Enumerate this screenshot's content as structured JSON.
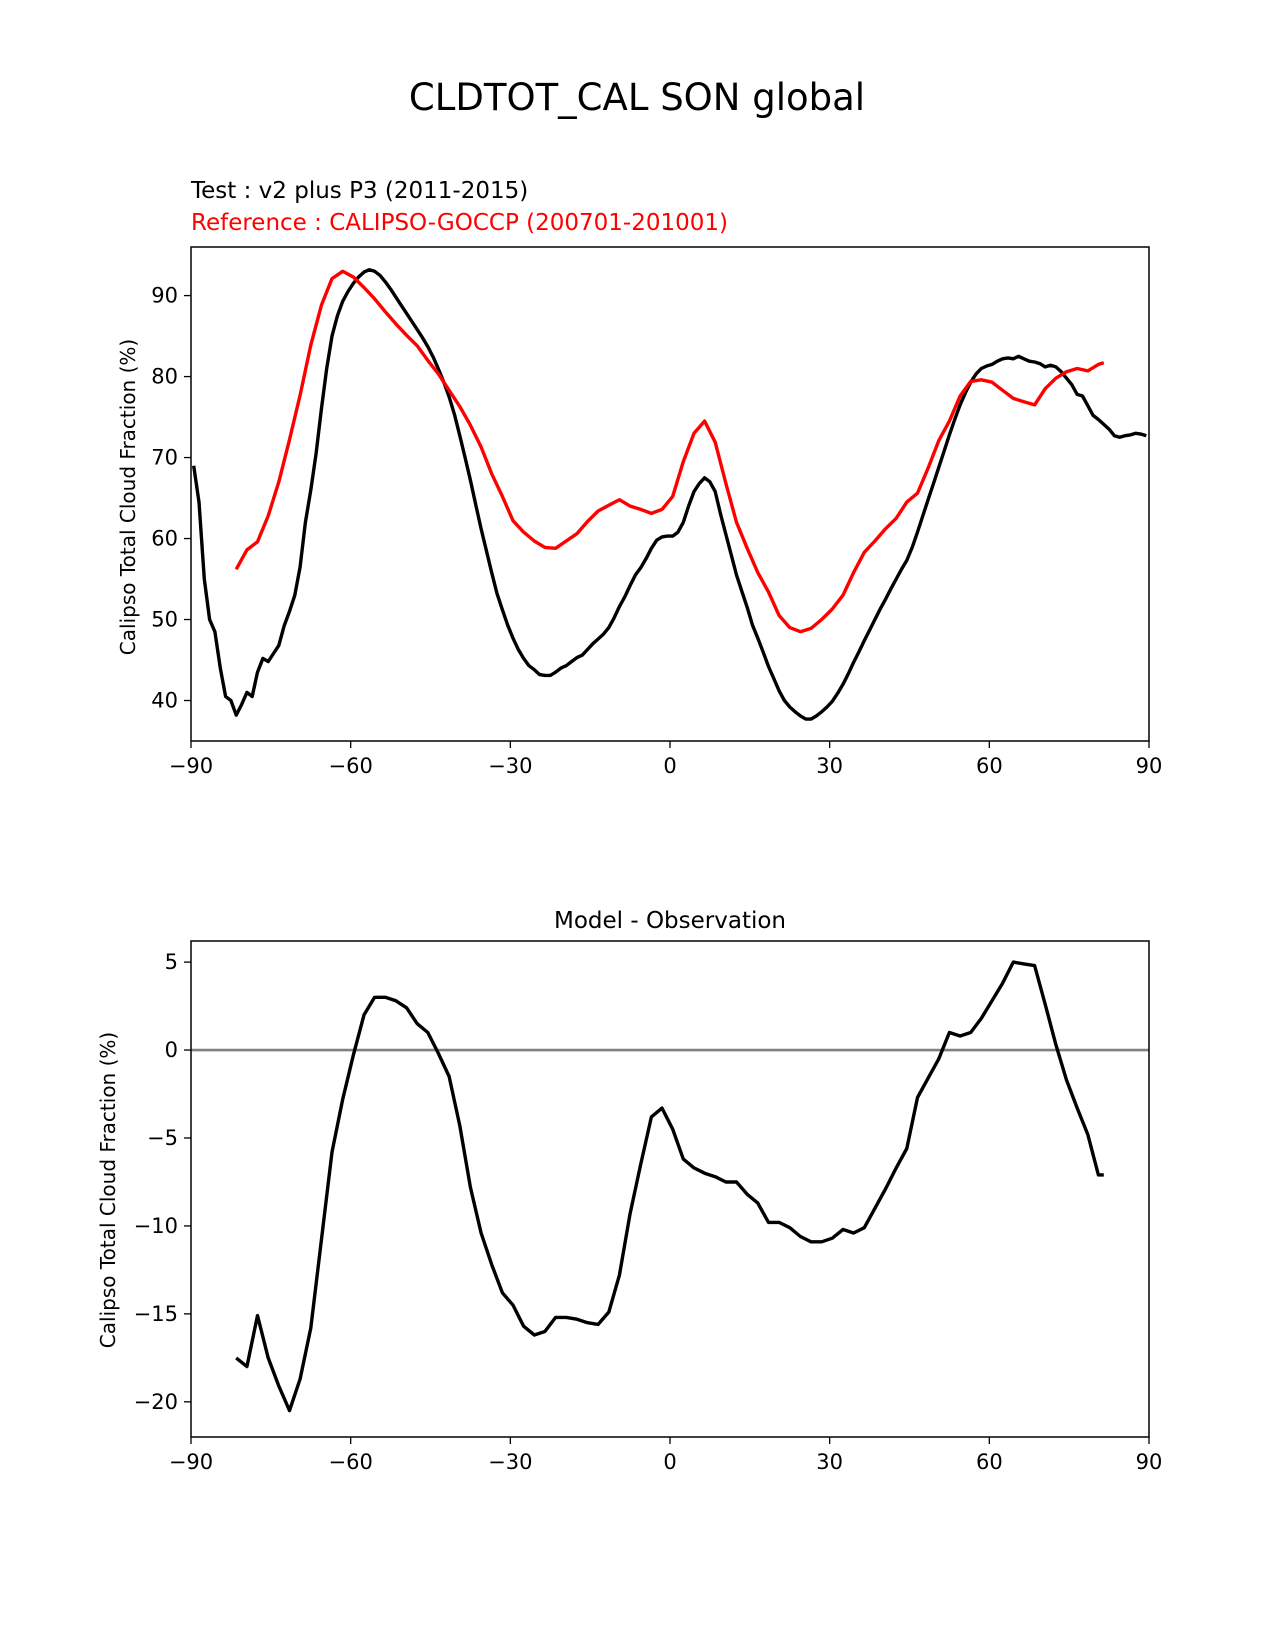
{
  "figure": {
    "suptitle": "CLDTOT_CAL SON global",
    "test_label": "Test : v2 plus P3 (2011-2015)",
    "reference_label": "Reference : CALIPSO-GOCCP (200701-201001)",
    "diff_title": "Model - Observation"
  },
  "colors": {
    "test": "#000000",
    "reference": "#ff0000",
    "zero_line": "#808080"
  },
  "chart_data": [
    {
      "type": "line",
      "title": "",
      "xlabel": "",
      "ylabel": "Calipso Total Cloud Fraction (%)",
      "xlim": [
        -90,
        90
      ],
      "ylim": [
        35,
        96
      ],
      "xticks": [
        -90,
        -60,
        -30,
        0,
        30,
        60,
        90
      ],
      "xtick_labels": [
        "−90",
        "−60",
        "−30",
        "0",
        "30",
        "60",
        "90"
      ],
      "yticks": [
        40,
        50,
        60,
        70,
        80,
        90
      ],
      "ytick_labels": [
        "40",
        "50",
        "60",
        "70",
        "80",
        "90"
      ],
      "series": [
        {
          "name": "Test : v2 plus P3 (2011-2015)",
          "color": "#000000",
          "x": [
            -89.5,
            -88.5,
            -87.5,
            -86.5,
            -85.5,
            -84.5,
            -83.5,
            -82.5,
            -81.5,
            -80.5,
            -79.5,
            -78.5,
            -77.5,
            -76.5,
            -75.5,
            -74.5,
            -73.5,
            -72.5,
            -71.5,
            -70.5,
            -69.5,
            -68.5,
            -67.5,
            -66.5,
            -65.5,
            -64.5,
            -63.5,
            -62.5,
            -61.5,
            -60.5,
            -59.5,
            -58.5,
            -57.5,
            -56.5,
            -55.5,
            -54.5,
            -53.5,
            -52.5,
            -51.5,
            -50.5,
            -49.5,
            -48.5,
            -47.5,
            -46.5,
            -45.5,
            -44.5,
            -43.5,
            -42.5,
            -41.5,
            -40.5,
            -39.5,
            -38.5,
            -37.5,
            -36.5,
            -35.5,
            -34.5,
            -33.5,
            -32.5,
            -31.5,
            -30.5,
            -29.5,
            -28.5,
            -27.5,
            -26.5,
            -25.5,
            -24.5,
            -23.5,
            -22.5,
            -21.5,
            -20.5,
            -19.5,
            -18.5,
            -17.5,
            -16.5,
            -15.5,
            -14.5,
            -13.5,
            -12.5,
            -11.5,
            -10.5,
            -9.5,
            -8.5,
            -7.5,
            -6.5,
            -5.5,
            -4.5,
            -3.5,
            -2.5,
            -1.5,
            -0.5,
            0.5,
            1.5,
            2.5,
            3.5,
            4.5,
            5.5,
            6.5,
            7.5,
            8.5,
            9.5,
            10.5,
            11.5,
            12.5,
            13.5,
            14.5,
            15.5,
            16.5,
            17.5,
            18.5,
            19.5,
            20.5,
            21.5,
            22.5,
            23.5,
            24.5,
            25.5,
            26.5,
            27.5,
            28.5,
            29.5,
            30.5,
            31.5,
            32.5,
            33.5,
            34.5,
            35.5,
            36.5,
            37.5,
            38.5,
            39.5,
            40.5,
            41.5,
            42.5,
            43.5,
            44.5,
            45.5,
            46.5,
            47.5,
            48.5,
            49.5,
            50.5,
            51.5,
            52.5,
            53.5,
            54.5,
            55.5,
            56.5,
            57.5,
            58.5,
            59.5,
            60.5,
            61.5,
            62.5,
            63.5,
            64.5,
            65.5,
            66.5,
            67.5,
            68.5,
            69.5,
            70.5,
            71.5,
            72.5,
            73.5,
            74.5,
            75.5,
            76.5,
            77.5,
            78.5,
            79.5,
            80.5,
            81.5,
            82.5,
            83.5,
            84.5,
            85.5,
            86.5,
            87.5,
            88.5,
            89.5
          ],
          "y": [
            69.0,
            64.5,
            55.0,
            50.0,
            48.5,
            44.0,
            40.5,
            40.0,
            38.2,
            39.5,
            41.0,
            40.5,
            43.5,
            45.2,
            44.8,
            45.8,
            46.8,
            49.2,
            51.0,
            53.0,
            56.5,
            62.0,
            66.0,
            70.5,
            76.0,
            81.0,
            85.0,
            87.5,
            89.3,
            90.5,
            91.5,
            92.3,
            92.9,
            93.2,
            93.0,
            92.5,
            91.7,
            90.8,
            89.8,
            88.8,
            87.8,
            86.8,
            85.8,
            84.8,
            83.7,
            82.4,
            80.9,
            79.3,
            77.5,
            75.3,
            72.7,
            70.0,
            67.2,
            64.2,
            61.2,
            58.5,
            55.8,
            53.2,
            51.2,
            49.3,
            47.7,
            46.3,
            45.2,
            44.3,
            43.8,
            43.2,
            43.1,
            43.1,
            43.5,
            44.0,
            44.3,
            44.8,
            45.3,
            45.6,
            46.3,
            47.0,
            47.6,
            48.2,
            49.0,
            50.2,
            51.6,
            52.8,
            54.2,
            55.5,
            56.4,
            57.5,
            58.8,
            59.8,
            60.2,
            60.3,
            60.3,
            60.8,
            62.0,
            64.0,
            65.8,
            66.8,
            67.5,
            67.0,
            65.8,
            63.0,
            60.5,
            58.0,
            55.5,
            53.5,
            51.5,
            49.3,
            47.7,
            46.0,
            44.2,
            42.7,
            41.2,
            40.0,
            39.2,
            38.6,
            38.1,
            37.7,
            37.7,
            38.1,
            38.6,
            39.2,
            39.9,
            40.9,
            42.0,
            43.3,
            44.7,
            46.0,
            47.4,
            48.7,
            50.0,
            51.3,
            52.5,
            53.8,
            55.0,
            56.2,
            57.3,
            58.9,
            60.8,
            62.8,
            64.8,
            66.8,
            68.8,
            70.8,
            72.8,
            74.7,
            76.5,
            78.0,
            79.3,
            80.3,
            81.0,
            81.3,
            81.5,
            81.9,
            82.2,
            82.3,
            82.2,
            82.5,
            82.2,
            81.9,
            81.8,
            81.6,
            81.2,
            81.4,
            81.2,
            80.6,
            79.8,
            79.0,
            77.8,
            77.6,
            76.4,
            75.2,
            74.7,
            74.1,
            73.5,
            72.7,
            72.5,
            72.7,
            72.8,
            73.0,
            72.9,
            72.7
          ]
        },
        {
          "name": "Reference : CALIPSO-GOCCP (200701-201001)",
          "color": "#ff0000",
          "x": [
            -81.5,
            -79.5,
            -77.5,
            -75.5,
            -73.5,
            -71.5,
            -69.5,
            -67.5,
            -65.5,
            -63.5,
            -61.5,
            -59.5,
            -57.5,
            -55.5,
            -53.5,
            -51.5,
            -49.5,
            -47.5,
            -45.5,
            -43.5,
            -41.5,
            -39.5,
            -37.5,
            -35.5,
            -33.5,
            -31.5,
            -29.5,
            -27.5,
            -25.5,
            -23.5,
            -21.5,
            -19.5,
            -17.5,
            -15.5,
            -13.5,
            -11.5,
            -9.5,
            -7.5,
            -5.5,
            -3.5,
            -1.5,
            0.5,
            2.5,
            4.5,
            6.5,
            8.5,
            10.5,
            12.5,
            14.5,
            16.5,
            18.5,
            20.5,
            22.5,
            24.5,
            26.5,
            28.5,
            30.5,
            32.5,
            34.5,
            36.5,
            38.5,
            40.5,
            42.5,
            44.5,
            46.5,
            48.5,
            50.5,
            52.5,
            54.5,
            56.5,
            58.5,
            60.5,
            62.5,
            64.5,
            66.5,
            68.5,
            70.5,
            72.5,
            74.5,
            76.5,
            78.5,
            80.5,
            81.5
          ],
          "y": [
            56.2,
            58.6,
            59.6,
            62.8,
            67.0,
            72.2,
            77.7,
            83.9,
            88.8,
            92.1,
            93.0,
            92.3,
            91.0,
            89.6,
            88.0,
            86.5,
            85.1,
            83.8,
            82.0,
            80.3,
            78.3,
            76.3,
            74.0,
            71.3,
            68.0,
            65.2,
            62.2,
            60.8,
            59.7,
            58.9,
            58.8,
            59.7,
            60.6,
            62.1,
            63.4,
            64.1,
            64.8,
            64.0,
            63.6,
            63.1,
            63.6,
            65.2,
            69.5,
            73.0,
            74.5,
            71.9,
            66.8,
            62.0,
            58.8,
            55.8,
            53.4,
            50.5,
            49.0,
            48.5,
            48.9,
            50.0,
            51.3,
            53.0,
            55.8,
            58.3,
            59.7,
            61.2,
            62.5,
            64.5,
            65.6,
            68.7,
            72.1,
            74.5,
            77.6,
            79.4,
            79.6,
            79.3,
            78.3,
            77.3,
            76.9,
            76.5,
            78.5,
            79.8,
            80.6,
            81.0,
            80.7,
            81.5,
            81.7
          ]
        }
      ]
    },
    {
      "type": "line",
      "title": "Model - Observation",
      "xlabel": "",
      "ylabel": "Calipso Total Cloud Fraction (%)",
      "xlim": [
        -90,
        90
      ],
      "ylim": [
        -22,
        6.2
      ],
      "xticks": [
        -90,
        -60,
        -30,
        0,
        30,
        60,
        90
      ],
      "xtick_labels": [
        "−90",
        "−60",
        "−30",
        "0",
        "30",
        "60",
        "90"
      ],
      "yticks": [
        -20,
        -15,
        -10,
        -5,
        0,
        5
      ],
      "ytick_labels": [
        "−20",
        "−15",
        "−10",
        "−5",
        "0",
        "5"
      ],
      "hline": 0,
      "series": [
        {
          "name": "Model - Observation",
          "color": "#000000",
          "x": [
            -81.5,
            -79.5,
            -77.5,
            -75.5,
            -73.5,
            -71.5,
            -69.5,
            -67.5,
            -65.5,
            -63.5,
            -61.5,
            -59.5,
            -57.5,
            -55.5,
            -53.5,
            -51.5,
            -49.5,
            -47.5,
            -45.5,
            -43.5,
            -41.5,
            -39.5,
            -37.5,
            -35.5,
            -33.5,
            -31.5,
            -29.5,
            -27.5,
            -25.5,
            -23.5,
            -21.5,
            -19.5,
            -17.5,
            -15.5,
            -13.5,
            -11.5,
            -9.5,
            -7.5,
            -5.5,
            -3.5,
            -1.5,
            0.5,
            2.5,
            4.5,
            6.5,
            8.5,
            10.5,
            12.5,
            14.5,
            16.5,
            18.5,
            20.5,
            22.5,
            24.5,
            26.5,
            28.5,
            30.5,
            32.5,
            34.5,
            36.5,
            38.5,
            40.5,
            42.5,
            44.5,
            46.5,
            48.5,
            50.5,
            52.5,
            54.5,
            56.5,
            58.5,
            60.5,
            62.5,
            64.5,
            66.5,
            68.5,
            70.5,
            72.5,
            74.5,
            76.5,
            78.5,
            80.5,
            81.5
          ],
          "y": [
            -17.5,
            -18.0,
            -15.1,
            -17.5,
            -19.1,
            -20.5,
            -18.7,
            -15.8,
            -10.8,
            -5.8,
            -2.8,
            -0.3,
            2.0,
            3.0,
            3.0,
            2.8,
            2.4,
            1.5,
            1.0,
            -0.2,
            -1.5,
            -4.3,
            -7.8,
            -10.4,
            -12.2,
            -13.8,
            -14.5,
            -15.7,
            -16.2,
            -16.0,
            -15.2,
            -15.2,
            -15.3,
            -15.5,
            -15.6,
            -14.9,
            -12.8,
            -9.3,
            -6.5,
            -3.8,
            -3.3,
            -4.5,
            -6.2,
            -6.7,
            -7.0,
            -7.2,
            -7.5,
            -7.5,
            -8.2,
            -8.7,
            -9.8,
            -9.8,
            -10.1,
            -10.6,
            -10.9,
            -10.9,
            -10.7,
            -10.2,
            -10.4,
            -10.1,
            -9.0,
            -7.9,
            -6.7,
            -5.6,
            -2.7,
            -1.6,
            -0.5,
            1.0,
            0.8,
            1.0,
            1.8,
            2.8,
            3.8,
            5.0,
            4.9,
            4.8,
            2.6,
            0.3,
            -1.7,
            -3.3,
            -4.8,
            -7.1,
            -7.1
          ]
        }
      ]
    }
  ]
}
